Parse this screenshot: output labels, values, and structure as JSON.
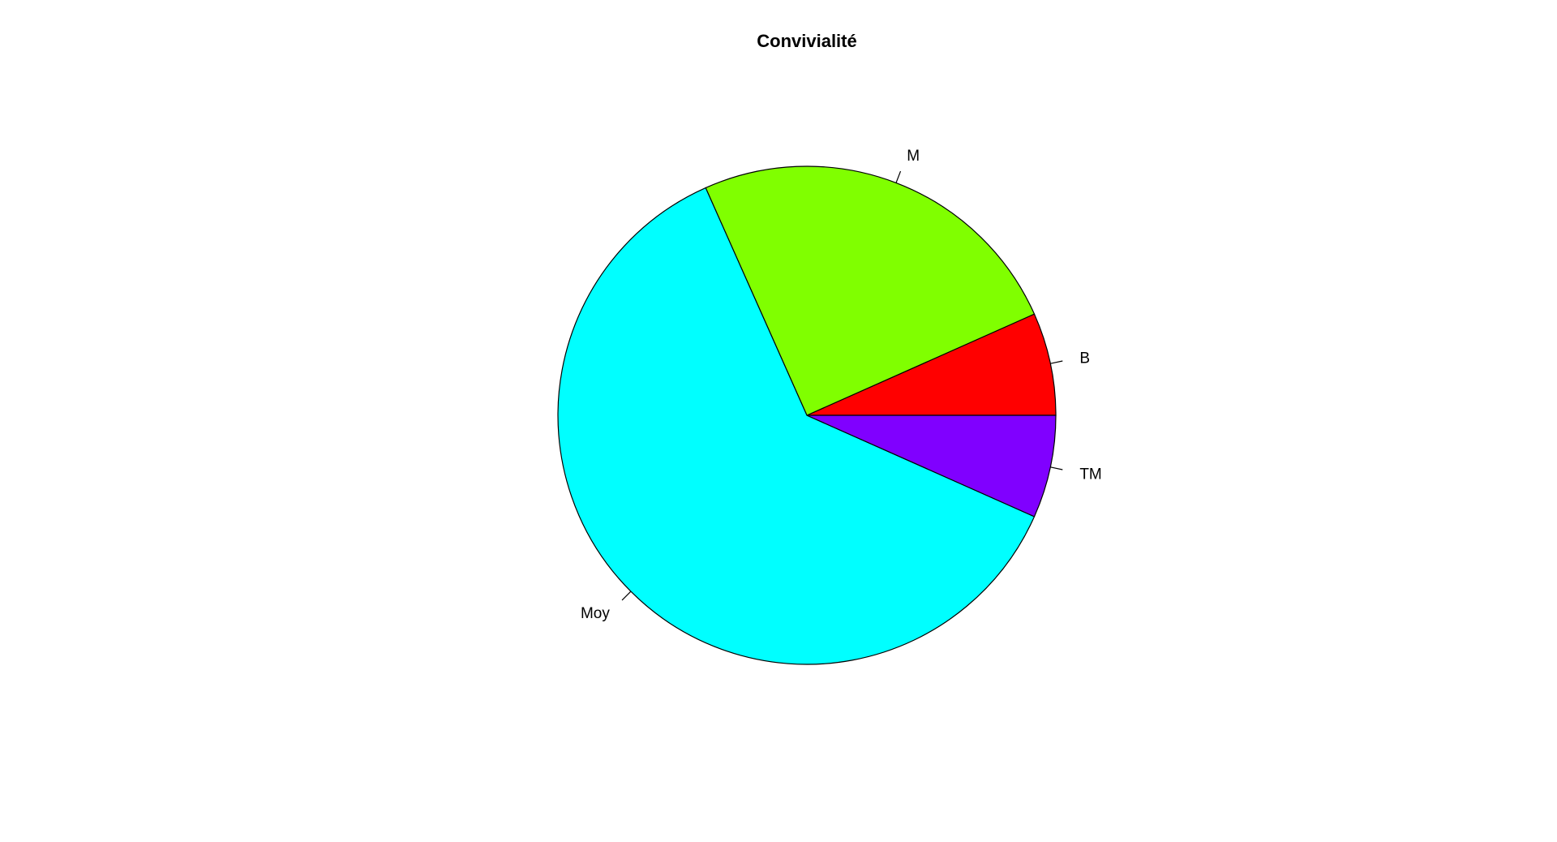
{
  "chart_data": {
    "type": "pie",
    "title": "Convivialité",
    "slices": [
      {
        "label": "B",
        "value": 4,
        "color": "#FF0000"
      },
      {
        "label": "M",
        "value": 15,
        "color": "#80FF00"
      },
      {
        "label": "Moy",
        "value": 37,
        "color": "#00FFFF"
      },
      {
        "label": "TM",
        "value": 4,
        "color": "#8000FF"
      }
    ],
    "start_angle_deg": 0,
    "direction": "counterclockwise",
    "border_color": "#000000",
    "background": "#FFFFFF"
  }
}
